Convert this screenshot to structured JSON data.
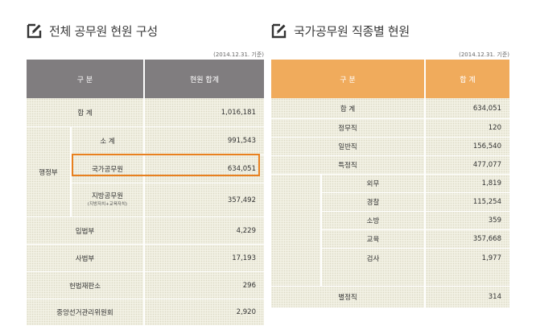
{
  "left": {
    "title": "전체 공무원 현원 구성",
    "basis": "(2014.12.31. 기준)",
    "headers": {
      "col1": "구 분",
      "col2": "현원 합계"
    },
    "rows": {
      "total": {
        "label": "합 계",
        "value": "1,016,181"
      },
      "exec": {
        "label": "행정부"
      },
      "subtotal": {
        "label": "소 계",
        "value": "991,543"
      },
      "national": {
        "label": "국가공무원",
        "value": "634,051"
      },
      "local": {
        "label": "지방공무원",
        "note": "(지방자치+교육자치)",
        "value": "357,492"
      },
      "legis": {
        "label": "입법부",
        "value": "4,229"
      },
      "judic": {
        "label": "사법부",
        "value": "17,193"
      },
      "const": {
        "label": "헌법재판소",
        "value": "296"
      },
      "nec": {
        "label": "중앙선거관리위원회",
        "value": "2,920"
      }
    }
  },
  "right": {
    "title": "국가공무원 직종별 현원",
    "basis": "(2014.12.31. 기준)",
    "headers": {
      "col1": "구 분",
      "col2": "합 계"
    },
    "rows": {
      "total": {
        "label": "합 계",
        "value": "634,051"
      },
      "political": {
        "label": "정무직",
        "value": "120"
      },
      "general": {
        "label": "일반직",
        "value": "156,540"
      },
      "special": {
        "label": "특정직",
        "value": "477,077"
      },
      "foreign": {
        "label": "외무",
        "value": "1,819"
      },
      "police": {
        "label": "경찰",
        "value": "115,254"
      },
      "fire": {
        "label": "소방",
        "value": "359"
      },
      "edu": {
        "label": "교육",
        "value": "357,668"
      },
      "prosec": {
        "label": "검사",
        "value": "1,977"
      },
      "separate": {
        "label": "별정직",
        "value": "314"
      }
    }
  },
  "colors": {
    "left_header": "#807d7f",
    "right_header": "#f0ab5c",
    "highlight": "#e8801f",
    "body": "#f2f1e4"
  },
  "icons": {
    "title": "edit-icon"
  }
}
